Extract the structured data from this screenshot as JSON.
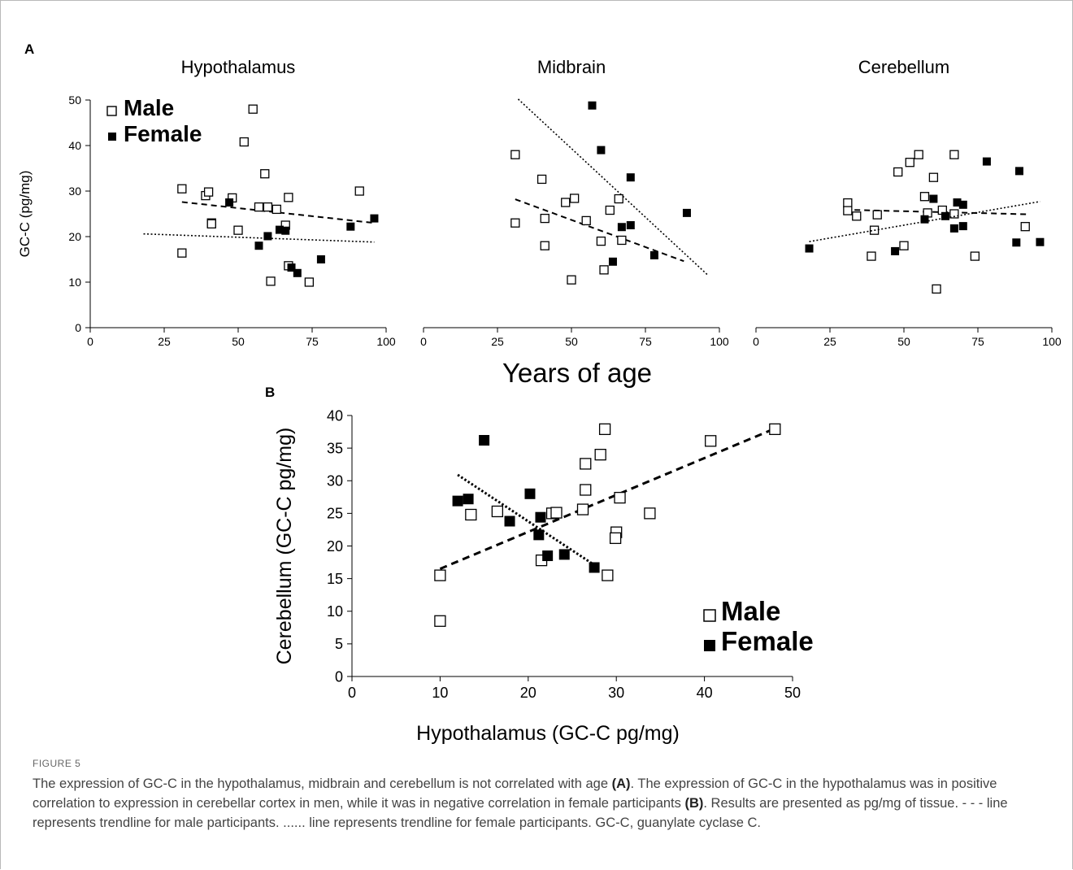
{
  "figure": {
    "panel_a_label": "A",
    "panel_b_label": "B",
    "shared_xlabel": "Years of age",
    "legend_male": "Male",
    "legend_female": "Female"
  },
  "caption": {
    "label": "FIGURE 5",
    "part1": "The expression of GC-C in the hypothalamus, midbrain and cerebellum is not correlated with age ",
    "bold1": "(A)",
    "part2": ". The expression of GC-C in the hypothalamus was in positive correlation to expression in cerebellar cortex in men, while it was in negative correlation in female participants ",
    "bold2": "(B)",
    "part3": ". Results are presented as pg/mg of tissue. - - - line represents trendline for male participants. ...... line represents trendline for female participants. GC-C, guanylate cyclase C."
  },
  "chart_data": [
    {
      "type": "scatter",
      "title": "Hypothalamus",
      "ylabel": "GC-C (pg/mg)",
      "xlim": [
        0,
        100
      ],
      "ylim": [
        0,
        50
      ],
      "xticks": [
        "0",
        "25",
        "50",
        "75",
        "100"
      ],
      "yticks": [
        "0",
        "10",
        "20",
        "30",
        "40",
        "50"
      ],
      "legend": "top-left",
      "series": [
        {
          "name": "Male",
          "marker": "open-square",
          "color": "#000000",
          "points": [
            [
              31,
              30.5
            ],
            [
              31,
              16.4
            ],
            [
              39,
              29
            ],
            [
              40,
              29.8
            ],
            [
              41,
              23
            ],
            [
              41,
              22.8
            ],
            [
              48,
              28.5
            ],
            [
              50,
              21.4
            ],
            [
              52,
              40.8
            ],
            [
              55,
              48
            ],
            [
              57,
              26.5
            ],
            [
              59,
              33.8
            ],
            [
              60,
              26.5
            ],
            [
              63,
              26
            ],
            [
              66,
              22.5
            ],
            [
              67,
              28.6
            ],
            [
              67,
              13.6
            ],
            [
              61,
              10.2
            ],
            [
              74,
              10
            ],
            [
              91,
              30
            ]
          ],
          "trendline": {
            "style": "dashed",
            "from": [
              31,
              27.6
            ],
            "to": [
              96,
              23
            ]
          }
        },
        {
          "name": "Female",
          "marker": "filled-square",
          "color": "#000000",
          "points": [
            [
              47,
              27.5
            ],
            [
              57,
              18
            ],
            [
              60,
              20.1
            ],
            [
              64,
              21.5
            ],
            [
              66,
              21.3
            ],
            [
              68,
              13.2
            ],
            [
              70,
              12
            ],
            [
              78,
              15
            ],
            [
              88,
              22.2
            ],
            [
              96,
              24
            ]
          ],
          "trendline": {
            "style": "dotted",
            "from": [
              18,
              20.6
            ],
            "to": [
              96,
              18.8
            ]
          }
        }
      ]
    },
    {
      "type": "scatter",
      "title": "Midbrain",
      "xlim": [
        0,
        100
      ],
      "ylim": [
        0,
        50
      ],
      "xticks": [
        "0",
        "25",
        "50",
        "75",
        "100"
      ],
      "series": [
        {
          "name": "Male",
          "marker": "open-square",
          "color": "#000000",
          "points": [
            [
              31,
              38
            ],
            [
              31,
              23
            ],
            [
              40,
              32.6
            ],
            [
              41,
              24
            ],
            [
              41,
              18
            ],
            [
              48,
              27.5
            ],
            [
              51,
              28.4
            ],
            [
              50,
              10.5
            ],
            [
              55,
              23.5
            ],
            [
              60,
              19
            ],
            [
              61,
              12.7
            ],
            [
              63,
              25.8
            ],
            [
              66,
              28.3
            ],
            [
              67,
              19.2
            ]
          ],
          "trendline": {
            "style": "dashed",
            "from": [
              31,
              28.2
            ],
            "to": [
              88,
              14.6
            ]
          }
        },
        {
          "name": "Female",
          "marker": "filled-square",
          "color": "#000000",
          "points": [
            [
              57,
              48.8
            ],
            [
              60,
              39
            ],
            [
              70,
              33
            ],
            [
              64,
              14.5
            ],
            [
              67,
              22.1
            ],
            [
              70,
              22.5
            ],
            [
              78,
              15.9
            ],
            [
              89,
              25.2
            ]
          ],
          "trendline": {
            "style": "dotted",
            "from": [
              32,
              50.2
            ],
            "to": [
              96,
              11.6
            ]
          }
        }
      ]
    },
    {
      "type": "scatter",
      "title": "Cerebellum",
      "xlim": [
        0,
        100
      ],
      "ylim": [
        0,
        50
      ],
      "xticks": [
        "0",
        "25",
        "50",
        "75",
        "100"
      ],
      "series": [
        {
          "name": "Male",
          "marker": "open-square",
          "color": "#000000",
          "points": [
            [
              31,
              27.4
            ],
            [
              31,
              25.7
            ],
            [
              34,
              24.5
            ],
            [
              39,
              15.7
            ],
            [
              40,
              21.4
            ],
            [
              41,
              24.8
            ],
            [
              48,
              34.2
            ],
            [
              50,
              18
            ],
            [
              52,
              36.3
            ],
            [
              55,
              38
            ],
            [
              57,
              28.8
            ],
            [
              58,
              25.2
            ],
            [
              60,
              33
            ],
            [
              61,
              8.5
            ],
            [
              63,
              25.8
            ],
            [
              67,
              38
            ],
            [
              74,
              15.7
            ],
            [
              67,
              25
            ],
            [
              91,
              22.2
            ]
          ],
          "trendline": {
            "style": "dashed",
            "from": [
              30,
              25.9
            ],
            "to": [
              92,
              24.9
            ]
          }
        },
        {
          "name": "Female",
          "marker": "filled-square",
          "color": "#000000",
          "points": [
            [
              18,
              17.4
            ],
            [
              47,
              16.8
            ],
            [
              57,
              23.8
            ],
            [
              60,
              28.3
            ],
            [
              64,
              24.5
            ],
            [
              67,
              21.8
            ],
            [
              68,
              27.5
            ],
            [
              70,
              27
            ],
            [
              70,
              22.3
            ],
            [
              78,
              36.5
            ],
            [
              88,
              18.7
            ],
            [
              89,
              34.4
            ],
            [
              96,
              18.8
            ]
          ],
          "trendline": {
            "style": "dotted",
            "from": [
              18,
              18.9
            ],
            "to": [
              96,
              27.7
            ]
          }
        }
      ]
    },
    {
      "type": "scatter",
      "xlabel": "Hypothalamus (GC-C pg/mg)",
      "ylabel": "Cerebellum (GC-C pg/mg)",
      "xlim": [
        0,
        50
      ],
      "ylim": [
        0,
        40
      ],
      "xticks": [
        "0",
        "10",
        "20",
        "30",
        "40",
        "50"
      ],
      "yticks": [
        "0",
        "5",
        "10",
        "15",
        "20",
        "25",
        "30",
        "35",
        "40"
      ],
      "legend": "bottom-right",
      "series": [
        {
          "name": "Male",
          "marker": "open-square",
          "color": "#000000",
          "points": [
            [
              10,
              15.5
            ],
            [
              10,
              8.5
            ],
            [
              13.5,
              24.8
            ],
            [
              16.5,
              25.3
            ],
            [
              21.5,
              17.8
            ],
            [
              22.7,
              25
            ],
            [
              23.2,
              25.1
            ],
            [
              26.2,
              25.6
            ],
            [
              26.5,
              28.6
            ],
            [
              26.5,
              32.6
            ],
            [
              28.2,
              34
            ],
            [
              28.7,
              37.9
            ],
            [
              30,
              22.1
            ],
            [
              29.9,
              21.2
            ],
            [
              30.4,
              27.4
            ],
            [
              29,
              15.5
            ],
            [
              33.8,
              25
            ],
            [
              40.7,
              36.1
            ],
            [
              48,
              37.9
            ]
          ],
          "trendline": {
            "style": "dashed",
            "from": [
              10,
              16.5
            ],
            "to": [
              48,
              38
            ]
          }
        },
        {
          "name": "Female",
          "marker": "filled-square",
          "color": "#000000",
          "points": [
            [
              12,
              26.9
            ],
            [
              13.2,
              27.2
            ],
            [
              15,
              36.2
            ],
            [
              17.9,
              23.8
            ],
            [
              20.2,
              28
            ],
            [
              21.4,
              24.4
            ],
            [
              21.2,
              21.7
            ],
            [
              22.2,
              18.5
            ],
            [
              24.1,
              18.7
            ],
            [
              27.5,
              16.7
            ]
          ],
          "trendline": {
            "style": "dotted",
            "from": [
              12,
              30.9
            ],
            "to": [
              27.5,
              17.1
            ]
          }
        }
      ]
    }
  ]
}
